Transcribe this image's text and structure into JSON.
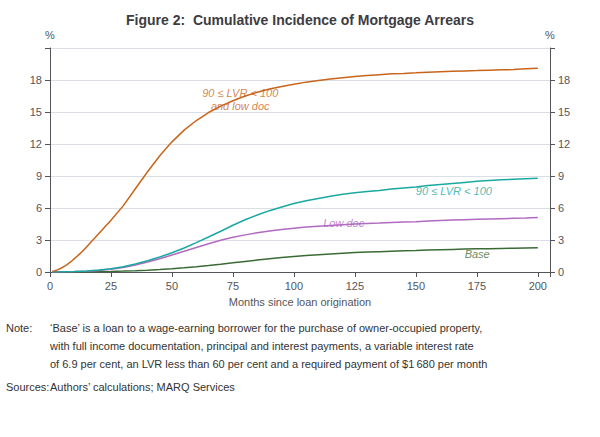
{
  "chart_data": {
    "type": "line",
    "title": "Figure 2:  Cumulative Incidence of Mortgage Arrears",
    "xlabel": "Months since loan origination",
    "ylabel": "%",
    "y2label": "%",
    "xlim": [
      0,
      205
    ],
    "xticks": [
      0,
      25,
      50,
      75,
      100,
      125,
      150,
      175,
      200
    ],
    "ylim": [
      0,
      21
    ],
    "yticks": [
      0,
      3,
      6,
      9,
      12,
      15,
      18
    ],
    "y2lim": [
      0,
      21
    ],
    "y2ticks": [
      0,
      3,
      6,
      9,
      12,
      15,
      18
    ],
    "grid": true,
    "series": [
      {
        "name": "Base",
        "color": "#3a6b35",
        "x": [
          1,
          5,
          10,
          15,
          20,
          25,
          30,
          35,
          40,
          45,
          50,
          55,
          60,
          65,
          70,
          75,
          80,
          85,
          90,
          95,
          100,
          105,
          110,
          115,
          120,
          125,
          130,
          135,
          140,
          145,
          150,
          155,
          160,
          165,
          170,
          175,
          180,
          185,
          190,
          195,
          200
        ],
        "values": [
          0.0,
          0.004,
          0.01,
          0.02,
          0.035,
          0.055,
          0.085,
          0.12,
          0.17,
          0.23,
          0.31,
          0.4,
          0.5,
          0.61,
          0.73,
          0.86,
          0.99,
          1.12,
          1.24,
          1.35,
          1.45,
          1.54,
          1.62,
          1.69,
          1.76,
          1.82,
          1.87,
          1.91,
          1.95,
          1.99,
          2.02,
          2.06,
          2.09,
          2.12,
          2.15,
          2.17,
          2.19,
          2.21,
          2.23,
          2.25,
          2.27
        ]
      },
      {
        "name": "Low doc",
        "color": "#b06ac0",
        "x": [
          1,
          5,
          10,
          15,
          20,
          25,
          30,
          35,
          40,
          45,
          50,
          55,
          60,
          65,
          70,
          75,
          80,
          85,
          90,
          95,
          100,
          105,
          110,
          115,
          120,
          125,
          130,
          135,
          140,
          145,
          150,
          155,
          160,
          165,
          170,
          175,
          180,
          185,
          190,
          195,
          200
        ],
        "values": [
          0.0,
          0.02,
          0.04,
          0.08,
          0.14,
          0.25,
          0.42,
          0.65,
          0.93,
          1.25,
          1.6,
          1.95,
          2.3,
          2.65,
          2.97,
          3.25,
          3.48,
          3.68,
          3.85,
          3.99,
          4.11,
          4.21,
          4.3,
          4.37,
          4.44,
          4.5,
          4.55,
          4.59,
          4.64,
          4.68,
          4.72,
          4.78,
          4.83,
          4.87,
          4.91,
          4.94,
          4.97,
          5.0,
          5.03,
          5.06,
          5.1
        ]
      },
      {
        "name": "90 ≤ LVR < 100",
        "color": "#1aa8a0",
        "x": [
          1,
          5,
          10,
          15,
          20,
          25,
          30,
          35,
          40,
          45,
          50,
          55,
          60,
          65,
          70,
          75,
          80,
          85,
          90,
          95,
          100,
          105,
          110,
          115,
          120,
          125,
          130,
          135,
          140,
          145,
          150,
          155,
          160,
          165,
          170,
          175,
          180,
          185,
          190,
          195,
          200
        ],
        "values": [
          0.0,
          0.02,
          0.05,
          0.1,
          0.18,
          0.3,
          0.5,
          0.75,
          1.05,
          1.4,
          1.8,
          2.25,
          2.75,
          3.28,
          3.82,
          4.38,
          4.9,
          5.35,
          5.75,
          6.1,
          6.42,
          6.68,
          6.9,
          7.1,
          7.28,
          7.43,
          7.55,
          7.65,
          7.78,
          7.88,
          7.98,
          8.1,
          8.2,
          8.3,
          8.4,
          8.5,
          8.58,
          8.64,
          8.7,
          8.75,
          8.8
        ]
      },
      {
        "name": "90 ≤ LVR < 100\nand low doc",
        "color": "#c8651b",
        "x": [
          1,
          2,
          3,
          4,
          5,
          6,
          7,
          8,
          9,
          10,
          11,
          12,
          13,
          14,
          15,
          16,
          17,
          18,
          19,
          20,
          21,
          22,
          23,
          24,
          25,
          30,
          35,
          40,
          45,
          50,
          55,
          60,
          65,
          70,
          75,
          80,
          85,
          90,
          95,
          100,
          105,
          110,
          115,
          120,
          125,
          130,
          135,
          140,
          145,
          150,
          155,
          160,
          165,
          170,
          175,
          180,
          185,
          190,
          195,
          200
        ],
        "values": [
          0.05,
          0.12,
          0.2,
          0.3,
          0.42,
          0.55,
          0.7,
          0.87,
          1.05,
          1.25,
          1.45,
          1.65,
          1.87,
          2.1,
          2.35,
          2.6,
          2.85,
          3.1,
          3.35,
          3.6,
          3.85,
          4.1,
          4.35,
          4.6,
          4.85,
          6.2,
          7.8,
          9.4,
          10.9,
          12.2,
          13.3,
          14.2,
          14.95,
          15.55,
          16.05,
          16.5,
          16.85,
          17.15,
          17.4,
          17.6,
          17.8,
          17.95,
          18.1,
          18.22,
          18.32,
          18.42,
          18.5,
          18.58,
          18.62,
          18.67,
          18.73,
          18.78,
          18.82,
          18.85,
          18.88,
          18.92,
          18.95,
          18.98,
          19.05,
          19.1
        ]
      }
    ],
    "annotations": [
      {
        "text": "90 ≤ LVR < 100\nand low doc",
        "x": 78,
        "y": 16.2,
        "color": "#c8651b"
      },
      {
        "text": "90 ≤ LVR < 100",
        "x": 150,
        "y": 7.6,
        "color": "#1aa8a0"
      },
      {
        "text": "Low doc",
        "x": 112,
        "y": 4.55,
        "color": "#b06ac0"
      },
      {
        "text": "Base",
        "x": 170,
        "y": 1.65,
        "color": "#3a6b35"
      }
    ],
    "notes": [
      {
        "label": "Note:",
        "lines": [
          "‘Base’ is a loan to a wage-earning borrower for the purchase of owner-occupied property,",
          "with full income documentation, principal and interest payments, a variable interest rate",
          "of 6.9 per cent, an LVR less than 60 per cent and a required payment of $1 680 per month"
        ]
      },
      {
        "label": "Sources:",
        "lines": [
          "Authors’ calculations; MARQ Services"
        ]
      }
    ]
  }
}
